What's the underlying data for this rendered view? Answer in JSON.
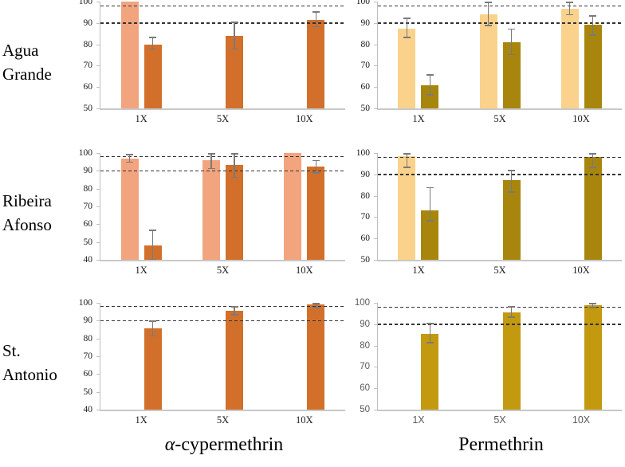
{
  "figure": {
    "row_labels": [
      "Agua Grande",
      "Ribeira Afonso",
      "St. Antonio"
    ],
    "column_labels": [
      "α-cypermethrin",
      "Permethrin"
    ]
  },
  "style": {
    "cyp_light": "#F2A47F",
    "cyp_dark": "#D2702B",
    "perm_light": "#FAD28C",
    "perm_dark": "#A8860D",
    "perm_dark_bright": "#C3990F",
    "error_bar": "#7a7a7a",
    "axis_line": "#BFBFBF",
    "reference_line": "#333333",
    "text": "#111111"
  },
  "chart_data": [
    {
      "type": "bar",
      "site": "Agua Grande",
      "insecticide": "α-cypermethrin",
      "categories": [
        "1X",
        "5X",
        "10X"
      ],
      "ylim": [
        50,
        100
      ],
      "yticks": [
        50,
        60,
        70,
        80,
        90,
        100
      ],
      "reference_lines": [
        98,
        90
      ],
      "grid": false,
      "font": "serif",
      "series": [
        {
          "name": "light",
          "color_key": "cyp_light",
          "values": [
            100,
            null,
            null
          ],
          "errors": [
            null,
            null,
            null
          ]
        },
        {
          "name": "dark",
          "color_key": "cyp_dark",
          "values": [
            80,
            84,
            91.5
          ],
          "errors": [
            [
              77.5,
              83.5
            ],
            [
              77.5,
              90.5
            ],
            [
              88,
              95.5
            ]
          ]
        }
      ]
    },
    {
      "type": "bar",
      "site": "Agua Grande",
      "insecticide": "Permethrin",
      "categories": [
        "1X",
        "5X",
        "10X"
      ],
      "ylim": [
        50,
        100
      ],
      "yticks": [
        50,
        60,
        70,
        80,
        90,
        100
      ],
      "reference_lines": [
        98,
        90
      ],
      "grid": false,
      "font": "serif",
      "series": [
        {
          "name": "light",
          "color_key": "perm_light",
          "values": [
            87.5,
            94,
            96.5
          ],
          "errors": [
            [
              83,
              92.5
            ],
            [
              88.5,
              100
            ],
            [
              93.5,
              100
            ]
          ]
        },
        {
          "name": "dark",
          "color_key": "perm_dark",
          "values": [
            61,
            81,
            89
          ],
          "errors": [
            [
              56,
              66
            ],
            [
              75,
              87.5
            ],
            [
              84,
              93.5
            ]
          ]
        }
      ]
    },
    {
      "type": "bar",
      "site": "Ribeira Afonso",
      "insecticide": "α-cypermethrin",
      "categories": [
        "1X",
        "5X",
        "10X"
      ],
      "ylim": [
        40,
        100
      ],
      "yticks": [
        40,
        50,
        60,
        70,
        80,
        90,
        100
      ],
      "reference_lines": [
        98,
        90
      ],
      "grid": false,
      "font": "serif",
      "series": [
        {
          "name": "light",
          "color_key": "cyp_light",
          "values": [
            97,
            96,
            100
          ],
          "errors": [
            [
              94.5,
              99.5
            ],
            [
              91,
              100
            ],
            null
          ]
        },
        {
          "name": "dark",
          "color_key": "cyp_dark",
          "values": [
            48,
            93.5,
            92.5
          ],
          "errors": [
            [
              40,
              57
            ],
            [
              86,
              100
            ],
            [
              88.5,
              96
            ]
          ]
        }
      ]
    },
    {
      "type": "bar",
      "site": "Ribeira Afonso",
      "insecticide": "Permethrin",
      "categories": [
        "1X",
        "5X",
        "10X"
      ],
      "ylim": [
        50,
        100
      ],
      "yticks": [
        50,
        60,
        70,
        80,
        90,
        100
      ],
      "reference_lines": [
        98,
        90
      ],
      "grid": false,
      "font": "serif",
      "series": [
        {
          "name": "light",
          "color_key": "perm_light",
          "values": [
            98.5,
            null,
            null
          ],
          "errors": [
            [
              93,
              100
            ],
            null,
            null
          ]
        },
        {
          "name": "dark",
          "color_key": "perm_dark",
          "values": [
            73,
            87.5,
            98
          ],
          "errors": [
            [
              68,
              84
            ],
            [
              81.5,
              92
            ],
            [
              93,
              100
            ]
          ]
        }
      ]
    },
    {
      "type": "bar",
      "site": "St. Antonio",
      "insecticide": "α-cypermethrin",
      "categories": [
        "1X",
        "5X",
        "10X"
      ],
      "ylim": [
        40,
        100
      ],
      "yticks": [
        40,
        50,
        60,
        70,
        80,
        90,
        100
      ],
      "reference_lines": [
        98,
        90
      ],
      "grid": false,
      "font": "serif",
      "series": [
        {
          "name": "light",
          "color_key": "cyp_light",
          "values": [
            null,
            null,
            null
          ],
          "errors": [
            null,
            null,
            null
          ]
        },
        {
          "name": "dark",
          "color_key": "cyp_dark",
          "values": [
            85.5,
            95.5,
            99
          ],
          "errors": [
            [
              81,
              90
            ],
            [
              93,
              98
            ],
            [
              97,
              100
            ]
          ]
        }
      ]
    },
    {
      "type": "bar",
      "site": "St. Antonio",
      "insecticide": "Permethrin",
      "categories": [
        "1X",
        "5X",
        "10X"
      ],
      "ylim": [
        50,
        100
      ],
      "yticks": [
        50,
        60,
        70,
        80,
        90,
        100
      ],
      "reference_lines": [
        98,
        90
      ],
      "grid": false,
      "font": "sans",
      "series": [
        {
          "name": "light",
          "color_key": "perm_light",
          "values": [
            null,
            null,
            null
          ],
          "errors": [
            null,
            null,
            null
          ]
        },
        {
          "name": "dark",
          "color_key": "perm_dark_bright",
          "values": [
            85.5,
            95.5,
            99
          ],
          "errors": [
            [
              81,
              90.5
            ],
            [
              93,
              98.5
            ],
            [
              97.5,
              100
            ]
          ]
        }
      ]
    }
  ]
}
